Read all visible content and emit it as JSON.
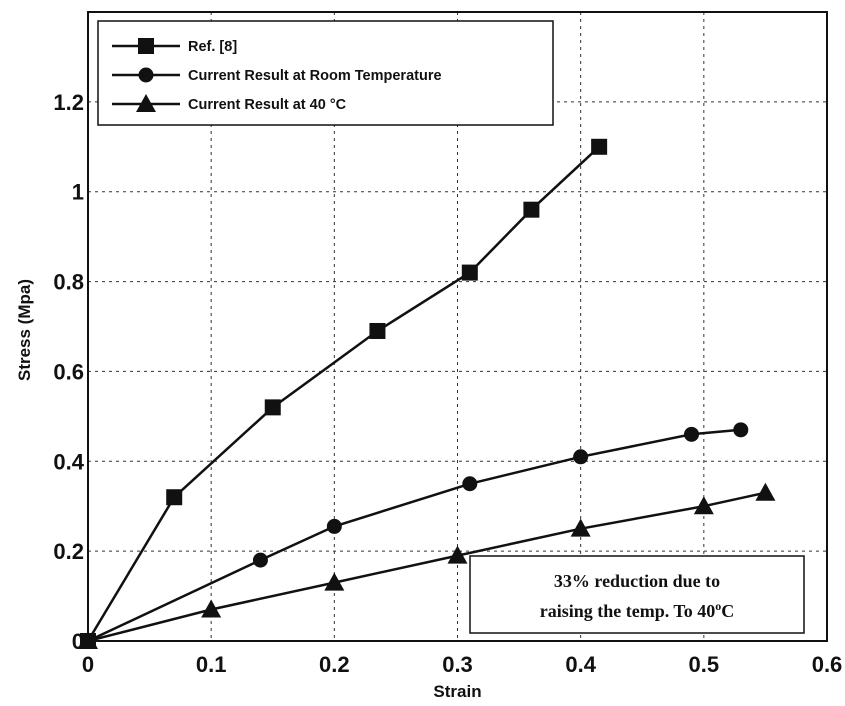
{
  "chart_data": {
    "type": "line",
    "xlabel": "Strain",
    "ylabel": "Stress (Mpa)",
    "xlim": [
      0,
      0.6
    ],
    "ylim": [
      0,
      1.4
    ],
    "xticks": [
      "0",
      "0.1",
      "0.2",
      "0.3",
      "0.4",
      "0.5",
      "0.6"
    ],
    "yticks": [
      "0",
      "0.2",
      "0.4",
      "0.6",
      "0.8",
      "1",
      "1.2"
    ],
    "grid": true,
    "legend_position": "top-left",
    "series": [
      {
        "name": "Ref. [8]",
        "marker": "square",
        "x": [
          0,
          0.07,
          0.15,
          0.235,
          0.31,
          0.36,
          0.415
        ],
        "y": [
          0,
          0.32,
          0.52,
          0.69,
          0.82,
          0.96,
          1.1
        ]
      },
      {
        "name": "Current Result at Room Temperature",
        "marker": "circle",
        "x": [
          0,
          0.14,
          0.2,
          0.31,
          0.4,
          0.49,
          0.53
        ],
        "y": [
          0,
          0.18,
          0.255,
          0.35,
          0.41,
          0.46,
          0.47
        ]
      },
      {
        "name": "Current Result at 40 °C",
        "marker": "triangle",
        "x": [
          0,
          0.1,
          0.2,
          0.3,
          0.4,
          0.5,
          0.55
        ],
        "y": [
          0,
          0.07,
          0.13,
          0.19,
          0.25,
          0.3,
          0.33
        ]
      }
    ],
    "annotation": {
      "line1": "33% reduction due to",
      "line2_pre": "raising the temp. To 40",
      "line2_sup": "o",
      "line2_post": "C"
    }
  }
}
